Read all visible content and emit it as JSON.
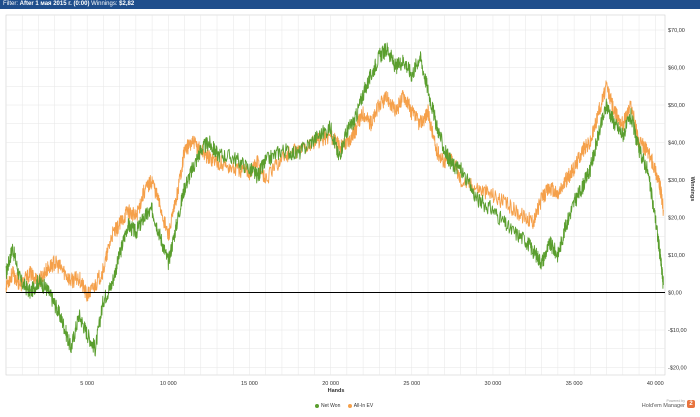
{
  "header": {
    "filter_label": "Filter:",
    "filter_value": "After 1 мая 2015 г. (0:00)",
    "winnings_label": "Winnings:",
    "winnings_value": "$2,82"
  },
  "branding": {
    "powered_by": "Powered by",
    "name": "Hold'em Manager",
    "logo_glyph": "2"
  },
  "colors": {
    "net_won": "#5a9e2e",
    "all_in_ev": "#f5a04a",
    "zero_line": "#000000",
    "grid": "#e6e6e6",
    "header_bg": "#1f4e8c"
  },
  "chart_data": {
    "type": "line",
    "xlabel": "Hands",
    "ylabel": "Winnings",
    "xlim": [
      0,
      40600
    ],
    "ylim": [
      -22,
      74
    ],
    "x_ticks": [
      5000,
      10000,
      15000,
      20000,
      25000,
      30000,
      35000,
      40000
    ],
    "x_tick_labels": [
      "5 000",
      "10 000",
      "15 000",
      "20 000",
      "25 000",
      "30 000",
      "35 000",
      "40 000"
    ],
    "y_ticks": [
      -20,
      -10,
      0,
      10,
      20,
      30,
      40,
      50,
      60,
      70
    ],
    "y_tick_labels": [
      "-$20,00",
      "-$10,00",
      "$0,00",
      "$10,00",
      "$20,00",
      "$30,00",
      "$40,00",
      "$50,00",
      "$60,00",
      "$70,00"
    ],
    "y_axis_side": "right",
    "grid": true,
    "legend_position": "bottom",
    "series": [
      {
        "name": "Net Won",
        "color": "#5a9e2e",
        "x": [
          0,
          400,
          900,
          1500,
          2000,
          2500,
          3000,
          3500,
          4000,
          4500,
          5000,
          5500,
          6000,
          6500,
          7000,
          7500,
          8000,
          8500,
          9000,
          9500,
          10000,
          10500,
          11000,
          11500,
          12000,
          12500,
          13000,
          14000,
          15000,
          15500,
          16000,
          17000,
          18000,
          19000,
          20000,
          20500,
          21000,
          21500,
          22000,
          22500,
          23000,
          23500,
          24000,
          24500,
          25000,
          25500,
          26000,
          26500,
          27000,
          27500,
          28000,
          29000,
          30000,
          31000,
          32000,
          32500,
          33000,
          33500,
          34000,
          34500,
          35000,
          35500,
          36000,
          36500,
          37000,
          37500,
          38000,
          38500,
          39000,
          39500,
          40000,
          40300,
          40500
        ],
        "y": [
          5,
          12,
          3,
          0,
          3,
          1,
          -3,
          -8,
          -15,
          -6,
          -11,
          -15,
          -2,
          2,
          10,
          18,
          16,
          20,
          22,
          15,
          8,
          18,
          28,
          33,
          38,
          40,
          37,
          36,
          33,
          31,
          35,
          38,
          37,
          41,
          44,
          36,
          43,
          46,
          53,
          58,
          63,
          65,
          60,
          62,
          58,
          63,
          54,
          45,
          38,
          34,
          33,
          25,
          22,
          17,
          14,
          11,
          8,
          13,
          10,
          18,
          24,
          28,
          33,
          42,
          50,
          45,
          42,
          47,
          38,
          33,
          20,
          10,
          2
        ]
      },
      {
        "name": "All-In EV",
        "color": "#f5a04a",
        "x": [
          0,
          400,
          900,
          1500,
          2000,
          2500,
          3000,
          3500,
          4000,
          4500,
          5000,
          5500,
          6000,
          6500,
          7000,
          7500,
          8000,
          8500,
          9000,
          9500,
          10000,
          10500,
          11000,
          11500,
          12000,
          12500,
          13000,
          14000,
          15000,
          15500,
          16000,
          17000,
          18000,
          19000,
          20000,
          20500,
          21000,
          21500,
          22000,
          22500,
          23000,
          23500,
          24000,
          24500,
          25000,
          25500,
          26000,
          26500,
          27000,
          27500,
          28000,
          29000,
          30000,
          31000,
          32000,
          32500,
          33000,
          33500,
          34000,
          34500,
          35000,
          35500,
          36000,
          36500,
          37000,
          37500,
          38000,
          38500,
          39000,
          39500,
          40000,
          40300,
          40500
        ],
        "y": [
          2,
          5,
          2,
          5,
          3,
          6,
          8,
          6,
          3,
          4,
          -1,
          2,
          6,
          15,
          18,
          22,
          20,
          27,
          30,
          23,
          15,
          25,
          38,
          40,
          38,
          36,
          35,
          33,
          32,
          35,
          30,
          36,
          38,
          40,
          42,
          39,
          40,
          43,
          48,
          45,
          50,
          52,
          48,
          53,
          48,
          45,
          48,
          38,
          35,
          36,
          30,
          28,
          26,
          23,
          20,
          19,
          25,
          28,
          26,
          30,
          33,
          38,
          40,
          48,
          55,
          48,
          45,
          50,
          40,
          38,
          33,
          28,
          22
        ]
      }
    ]
  }
}
